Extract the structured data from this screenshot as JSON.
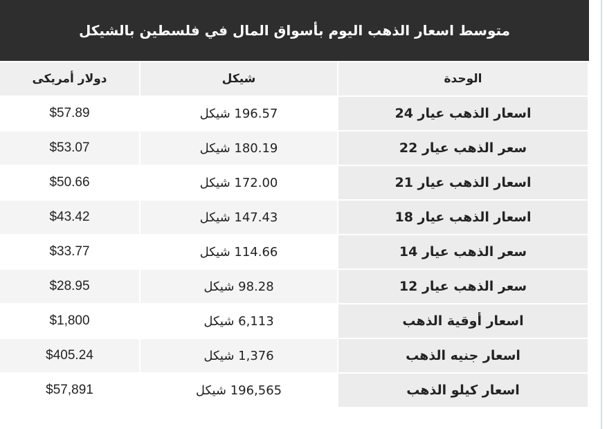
{
  "title": "متوسط اسعار الذهب اليوم بأسواق المال في فلسطين بالشيكل",
  "headers": {
    "unit": "الوحدة",
    "shekel": "شيكل",
    "usd": "دولار أمريكى"
  },
  "rows": [
    {
      "unit": "اسعار الذهب عيار 24",
      "shekel": "196.57 شيكل",
      "usd": "$57.89"
    },
    {
      "unit": "سعر الذهب عيار 22",
      "shekel": "180.19 شيكل",
      "usd": "$53.07"
    },
    {
      "unit": "اسعار الذهب عيار 21",
      "shekel": "172.00 شيكل",
      "usd": "$50.66"
    },
    {
      "unit": "اسعار الذهب عيار 18",
      "shekel": "147.43 شيكل",
      "usd": "$43.42"
    },
    {
      "unit": "سعر الذهب عيار 14",
      "shekel": "114.66 شيكل",
      "usd": "$33.77"
    },
    {
      "unit": "سعر الذهب عيار 12",
      "shekel": "98.28 شيكل",
      "usd": "$28.95"
    },
    {
      "unit": "اسعار أوقية الذهب",
      "shekel": "6,113 شيكل",
      "usd": "$1,800"
    },
    {
      "unit": "اسعار جنيه الذهب",
      "shekel": "1,376 شيكل",
      "usd": "$405.24"
    },
    {
      "unit": "اسعار كيلو الذهب",
      "shekel": "196,565 شيكل",
      "usd": "$57,891"
    }
  ]
}
